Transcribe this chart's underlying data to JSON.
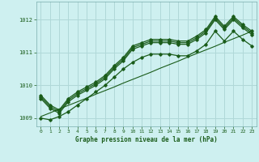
{
  "title": "Graphe pression niveau de la mer (hPa)",
  "bg_color": "#cef0f0",
  "grid_color": "#b0d8d8",
  "line_color": "#1a5c1a",
  "x_ticks": [
    0,
    1,
    2,
    3,
    4,
    5,
    6,
    7,
    8,
    9,
    10,
    11,
    12,
    13,
    14,
    15,
    16,
    17,
    18,
    19,
    20,
    21,
    22,
    23
  ],
  "ylim": [
    1008.75,
    1012.55
  ],
  "yticks": [
    1009,
    1010,
    1011,
    1012
  ],
  "trend": [
    1009.05,
    1009.16,
    1009.28,
    1009.39,
    1009.5,
    1009.61,
    1009.73,
    1009.84,
    1009.95,
    1010.07,
    1010.18,
    1010.29,
    1010.4,
    1010.52,
    1010.63,
    1010.74,
    1010.86,
    1010.97,
    1011.08,
    1011.19,
    1011.31,
    1011.42,
    1011.53,
    1011.65
  ],
  "series": [
    [
      1009.65,
      1009.35,
      1009.2,
      1009.55,
      1009.75,
      1009.9,
      1010.05,
      1010.25,
      1010.55,
      1010.8,
      1011.15,
      1011.25,
      1011.35,
      1011.35,
      1011.35,
      1011.3,
      1011.3,
      1011.45,
      1011.65,
      1012.05,
      1011.75,
      1012.05,
      1011.8,
      1011.6
    ],
    [
      1009.6,
      1009.3,
      1009.15,
      1009.5,
      1009.7,
      1009.85,
      1010.0,
      1010.2,
      1010.5,
      1010.75,
      1011.1,
      1011.2,
      1011.3,
      1011.3,
      1011.3,
      1011.25,
      1011.25,
      1011.4,
      1011.6,
      1012.0,
      1011.7,
      1012.0,
      1011.75,
      1011.55
    ],
    [
      1009.7,
      1009.4,
      1009.25,
      1009.6,
      1009.8,
      1009.95,
      1010.1,
      1010.3,
      1010.6,
      1010.85,
      1011.2,
      1011.3,
      1011.4,
      1011.4,
      1011.4,
      1011.35,
      1011.35,
      1011.5,
      1011.7,
      1012.1,
      1011.8,
      1012.1,
      1011.85,
      1011.65
    ],
    [
      1009.0,
      1008.95,
      1009.05,
      1009.2,
      1009.4,
      1009.6,
      1009.8,
      1010.0,
      1010.25,
      1010.5,
      1010.7,
      1010.85,
      1010.95,
      1010.95,
      1010.95,
      1010.9,
      1010.9,
      1011.05,
      1011.25,
      1011.65,
      1011.35,
      1011.65,
      1011.4,
      1011.2
    ]
  ]
}
